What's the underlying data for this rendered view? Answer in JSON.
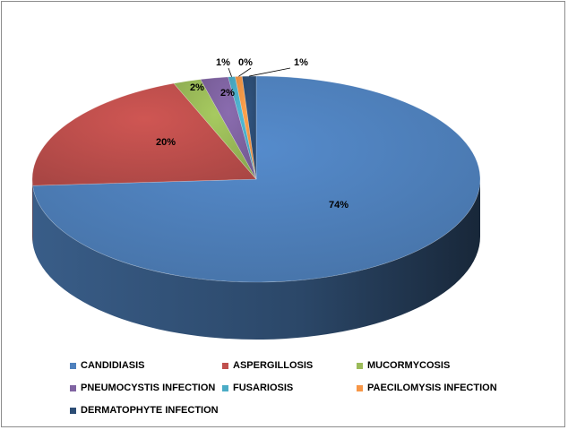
{
  "chart_data": {
    "type": "pie",
    "title": "",
    "series": [
      {
        "name": "CANDIDIASIS",
        "value": 74,
        "label": "74%",
        "color": "#4f81bd"
      },
      {
        "name": "ASPERGILLOSIS",
        "value": 20,
        "label": "20%",
        "color": "#c0504d"
      },
      {
        "name": "MUCORMYCOSIS",
        "value": 2,
        "label": "2%",
        "color": "#9bbb59"
      },
      {
        "name": "PNEUMOCYSTIS INFECTION",
        "value": 2,
        "label": "2%",
        "color": "#8064a2"
      },
      {
        "name": "FUSARIOSIS",
        "value": 0.5,
        "label": "1%",
        "color": "#4bacc6"
      },
      {
        "name": "PAECILOMYSIS INFECTION",
        "value": 0.5,
        "label": "0%",
        "color": "#f79646"
      },
      {
        "name": "DERMATOPHYTE INFECTION",
        "value": 1,
        "label": "1%",
        "color": "#2c4d75"
      }
    ],
    "legend_position": "bottom",
    "style": "3d-pie"
  }
}
